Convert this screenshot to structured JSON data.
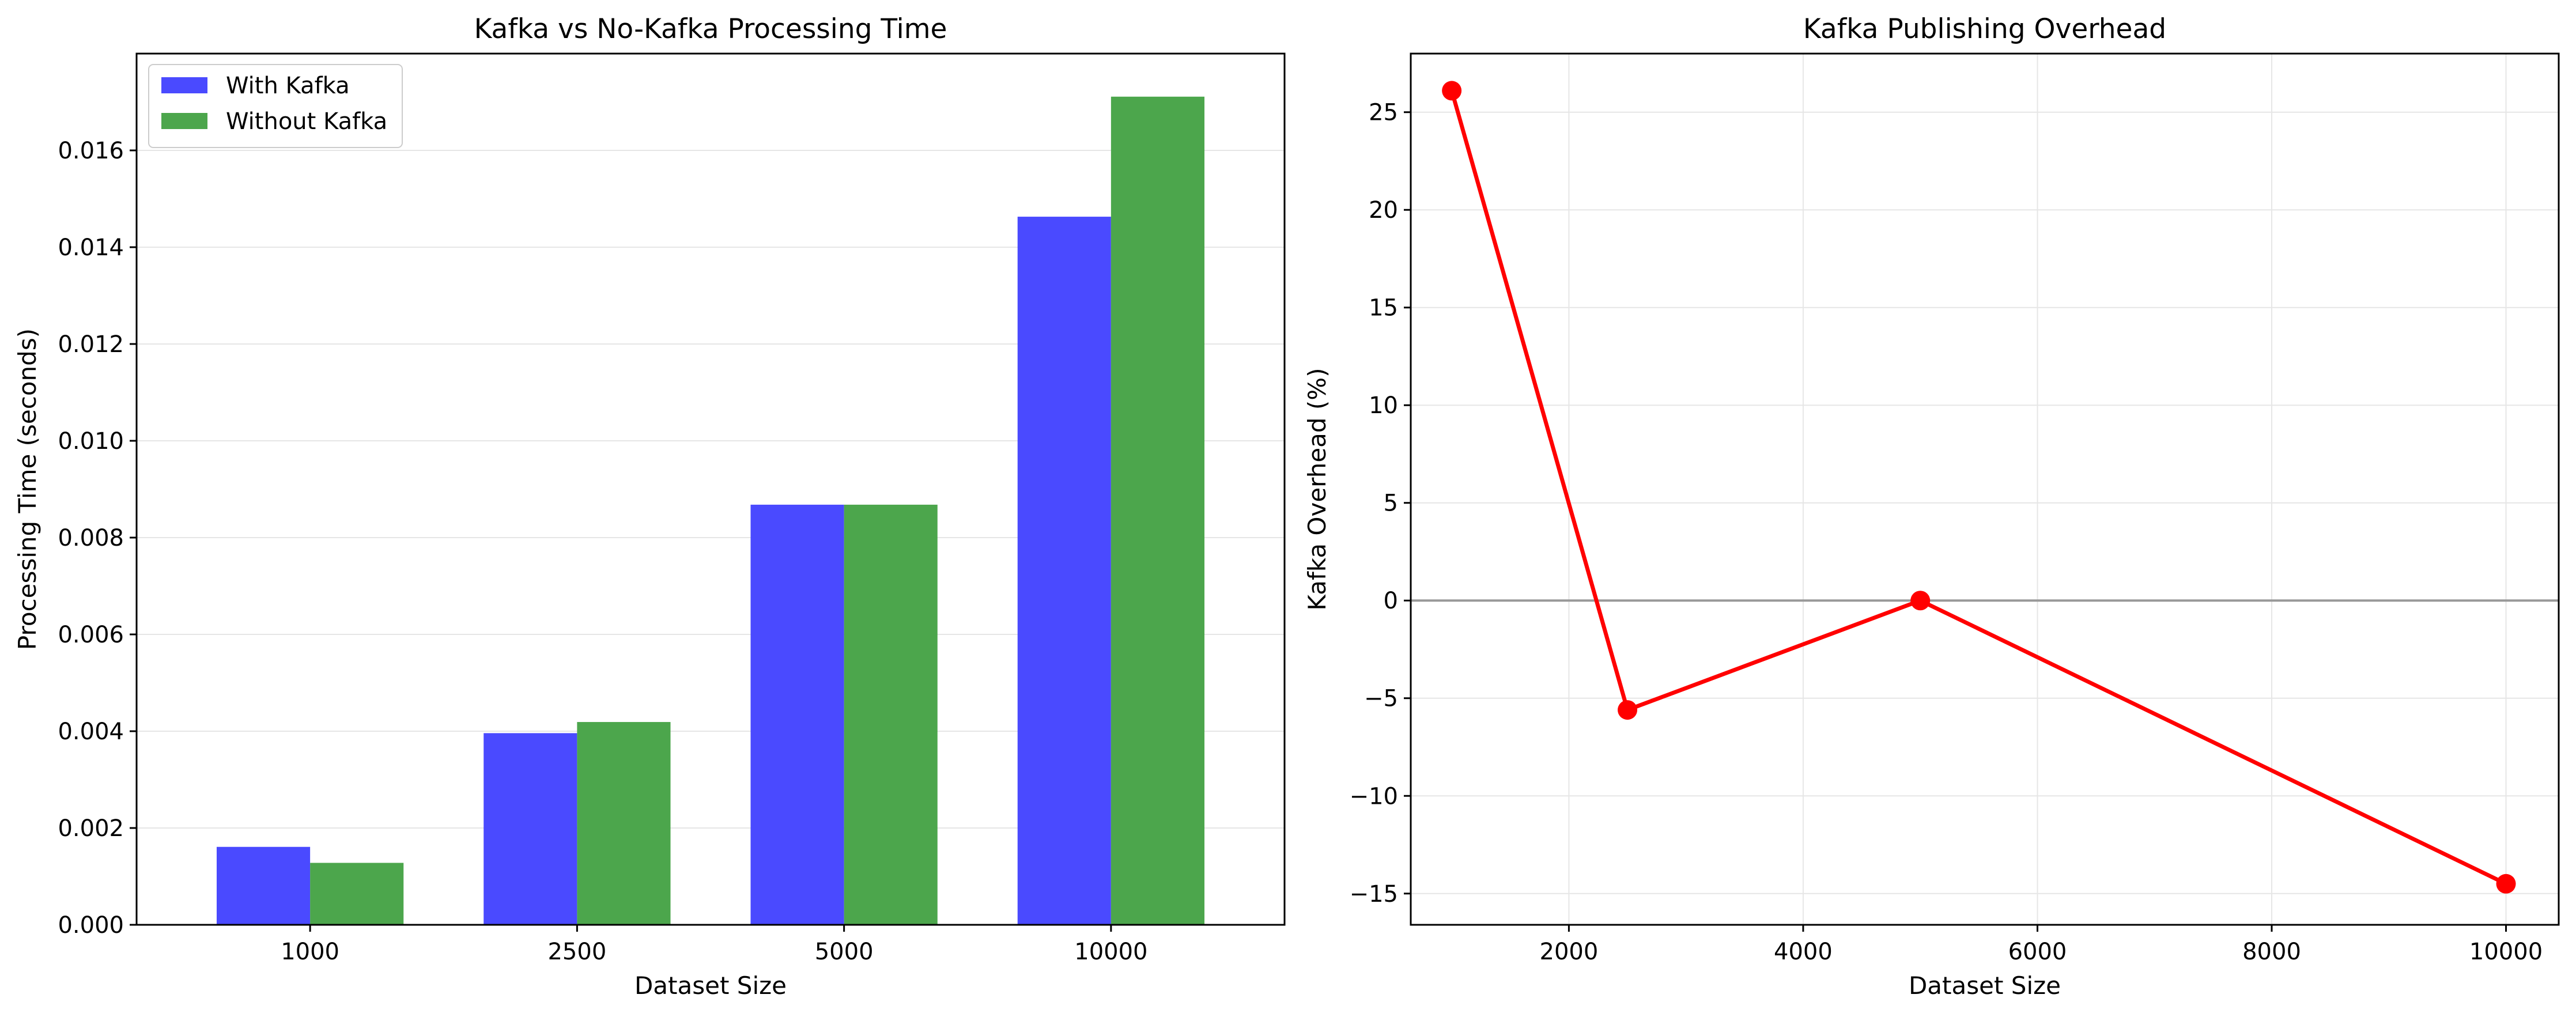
{
  "chart_data": [
    {
      "type": "bar",
      "title": "Kafka vs No-Kafka Processing Time",
      "xlabel": "Dataset Size",
      "ylabel": "Processing Time (seconds)",
      "categories": [
        "1000",
        "2500",
        "5000",
        "10000"
      ],
      "series": [
        {
          "name": "With Kafka",
          "color": "#4a4aff",
          "values": [
            0.00161,
            0.00396,
            0.00868,
            0.01463
          ]
        },
        {
          "name": "Without Kafka",
          "color": "#4ca64c",
          "values": [
            0.00128,
            0.00419,
            0.00868,
            0.01711
          ]
        }
      ],
      "ylim": [
        0,
        0.018
      ],
      "yticks": [
        0,
        0.002,
        0.004,
        0.006,
        0.008,
        0.01,
        0.012,
        0.014,
        0.016
      ],
      "ytick_labels": [
        "0.000",
        "0.002",
        "0.004",
        "0.006",
        "0.008",
        "0.010",
        "0.012",
        "0.014",
        "0.016"
      ],
      "grid": "y",
      "legend": "upper-left"
    },
    {
      "type": "line",
      "title": "Kafka Publishing Overhead",
      "xlabel": "Dataset Size",
      "ylabel": "Kafka Overhead (%)",
      "series": [
        {
          "x": [
            1000,
            2500,
            5000,
            10000
          ],
          "values": [
            26.1,
            -5.6,
            0.0,
            -14.5
          ],
          "color": "#ff0000"
        }
      ],
      "xlim": [
        650,
        10450
      ],
      "ylim": [
        -16.6,
        28.0
      ],
      "xticks": [
        2000,
        4000,
        6000,
        8000,
        10000
      ],
      "xtick_labels": [
        "2000",
        "4000",
        "6000",
        "8000",
        "10000"
      ],
      "yticks": [
        -15,
        -10,
        -5,
        0,
        5,
        10,
        15,
        20,
        25
      ],
      "ytick_labels": [
        "−15",
        "−10",
        "−5",
        "0",
        "5",
        "10",
        "15",
        "20",
        "25"
      ],
      "reference_line": {
        "y": 0,
        "color": "#999999"
      },
      "grid": "both"
    }
  ]
}
